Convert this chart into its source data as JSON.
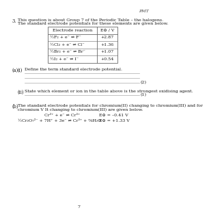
{
  "page_label": "PMT",
  "question_number": "3.",
  "q_text_line1": "This question is about Group 7 of the Periodic Table – the halogens.",
  "q_text_line2": "The standard electrode potentials for these elements are given below.",
  "table_headers": [
    "Electrode reaction",
    "E⊖ / V"
  ],
  "table_rows": [
    [
      "½F₂ + e⁻ ⇌ F⁻",
      "+2.87"
    ],
    [
      "½Cl₂ + e⁻ ⇌ Cl⁻",
      "+1.36"
    ],
    [
      "½Br₂ + e⁻ ⇌ Br⁻",
      "+1.07"
    ],
    [
      "½I₂ + e⁻ ⇌ I⁻",
      "+0.54"
    ]
  ],
  "part_a_label": "(a)",
  "part_i_label": "(i)",
  "part_i_text": "Define the term standard electrode potential.",
  "marks_i": "(2)",
  "part_ii_label": "(ii)",
  "part_ii_text": "State which element or ion in the table above is the strongest oxidising agent.",
  "marks_ii": "(1)",
  "part_b_label": "(b)",
  "part_b_text1": "The standard electrode potentials for chromium(II) changing to chromium(III) and for",
  "part_b_text2": "chromium V It changing to chromium(III) are given below.",
  "eq1_left": "Cr²⁺ + e⁻ ⇌ Cr³⁺",
  "eq1_right": "E⊖ = –0.41 V",
  "eq2_left": "½Cr₂O₇²⁻ + 7H⁺ + 3e⁻ ⇌ Cr³⁺ + ⅝H₂O",
  "eq2_right": "E⊖ = +1.33 V",
  "page_num": "7",
  "bg": "#ffffff",
  "tc": "#1a1a1a",
  "lc": "#aaaaaa",
  "tbc": "#666666"
}
